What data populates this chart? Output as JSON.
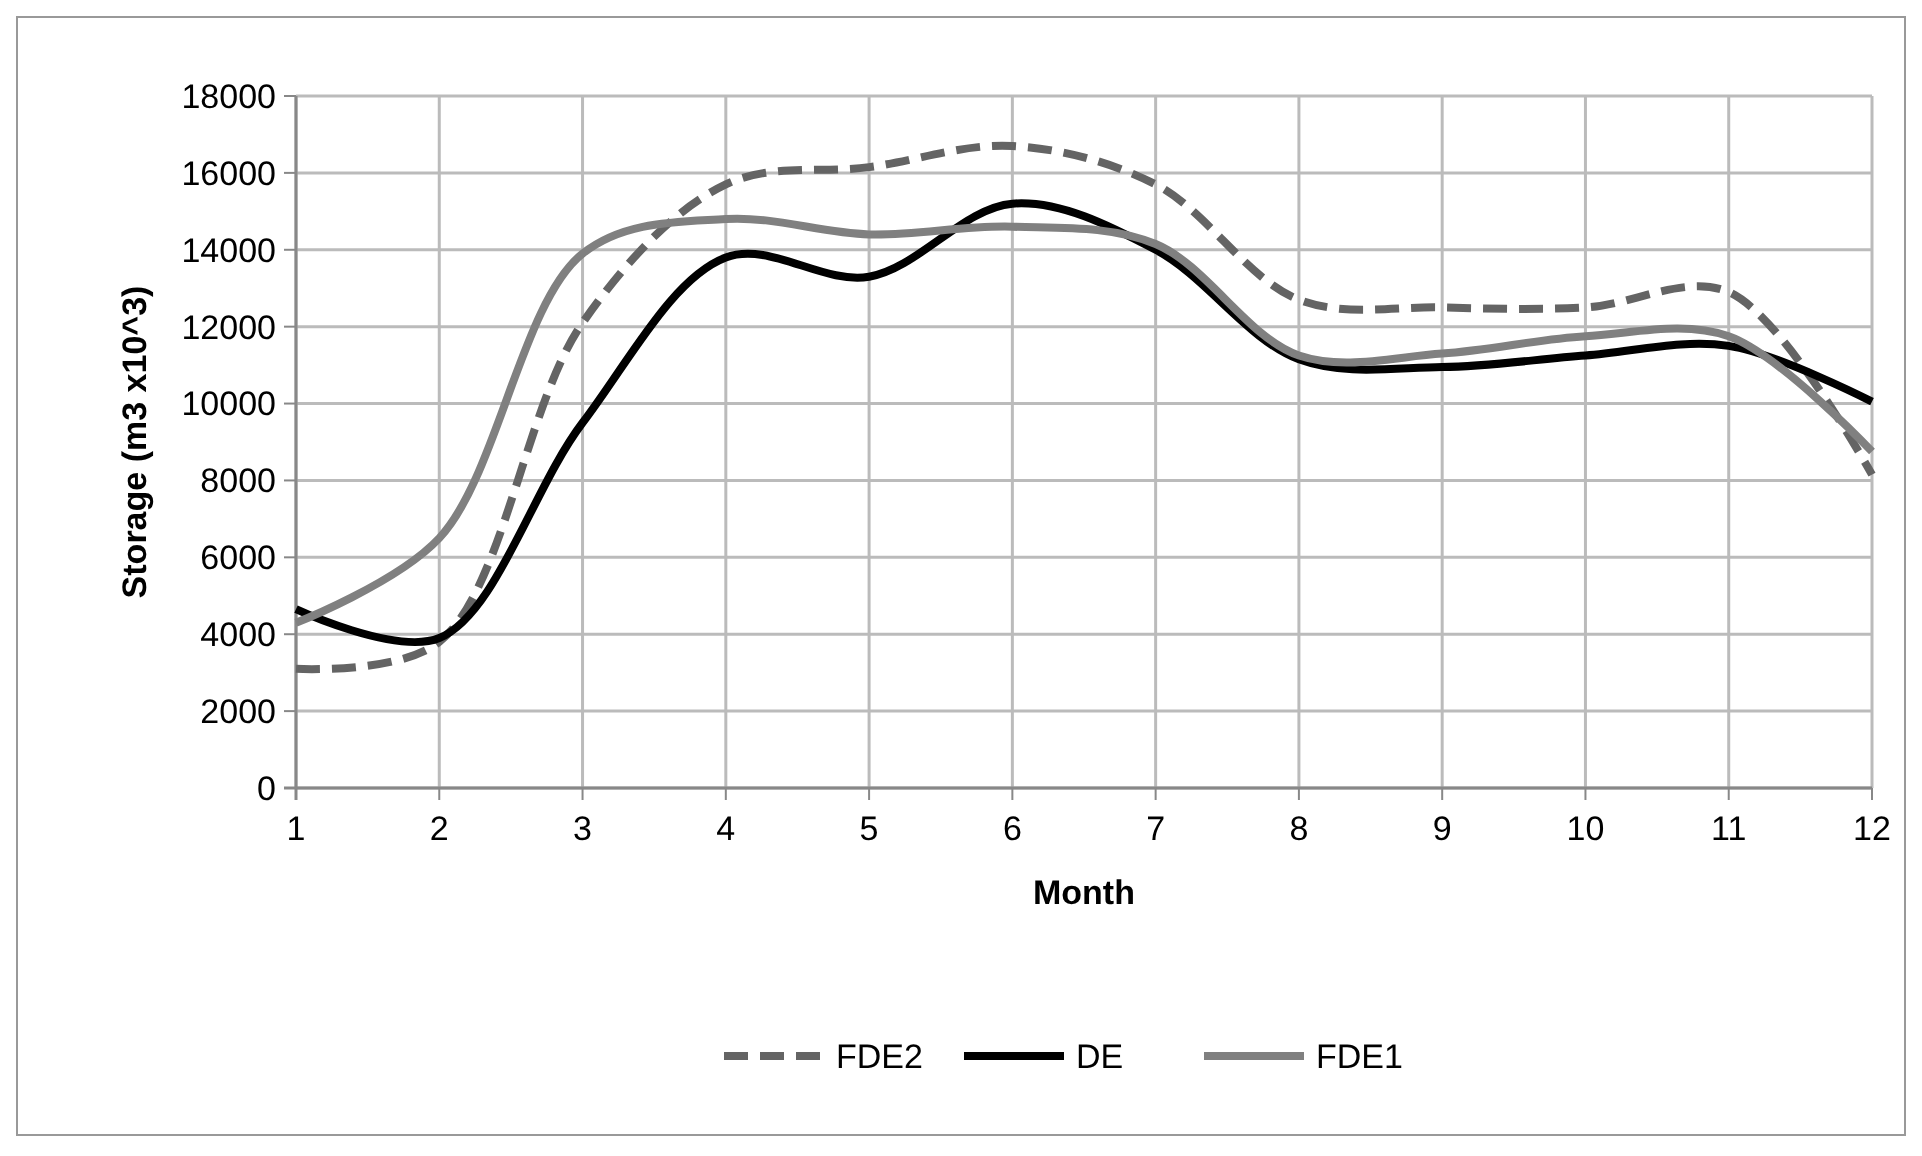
{
  "chart_data": {
    "type": "line",
    "xlabel": "Month",
    "ylabel": "Storage (m3 x10^3)",
    "x": [
      1,
      2,
      3,
      4,
      5,
      6,
      7,
      8,
      9,
      10,
      11,
      12
    ],
    "xlim": [
      1,
      12
    ],
    "xticks": [
      1,
      2,
      3,
      4,
      5,
      6,
      7,
      8,
      9,
      10,
      11,
      12
    ],
    "ylim": [
      0,
      18000
    ],
    "yticks": [
      0,
      2000,
      4000,
      6000,
      8000,
      10000,
      12000,
      14000,
      16000,
      18000
    ],
    "grid": true,
    "legend": "bottom",
    "marker": "none",
    "series": [
      {
        "name": "FDE2",
        "color": "#646464",
        "line_style": "dashed",
        "values": [
          3100,
          3800,
          12100,
          15700,
          16150,
          16700,
          15700,
          12700,
          12500,
          12500,
          12900,
          8150
        ]
      },
      {
        "name": "DE",
        "color": "#000000",
        "line_style": "solid",
        "values": [
          4650,
          3900,
          9500,
          13800,
          13300,
          15200,
          14000,
          11150,
          10950,
          11250,
          11500,
          10050
        ]
      },
      {
        "name": "FDE1",
        "color": "#808080",
        "line_style": "solid",
        "values": [
          4300,
          6500,
          13900,
          14800,
          14400,
          14600,
          14150,
          11250,
          11300,
          11750,
          11750,
          8750
        ]
      }
    ]
  }
}
